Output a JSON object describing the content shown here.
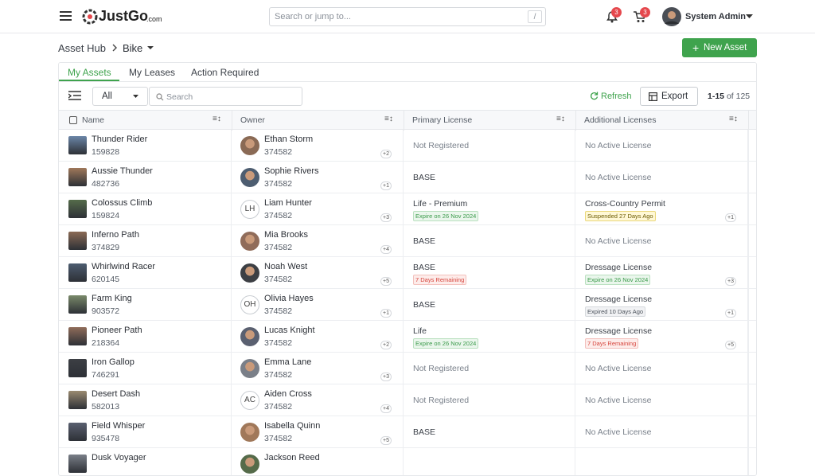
{
  "header": {
    "logo": "JustGo",
    "logo_suffix": ".com",
    "search_placeholder": "Search or jump to...",
    "search_shortcut": "/",
    "notifications_count": 3,
    "cart_count": 3,
    "user_name": "System Admin"
  },
  "breadcrumb": {
    "items": [
      "Asset Hub",
      "Bike"
    ]
  },
  "new_asset_button": "New Asset",
  "tabs": [
    "My Assets",
    "My Leases",
    "Action Required"
  ],
  "toolbar": {
    "filter": "All",
    "search_placeholder": "Search",
    "refresh": "Refresh",
    "export": "Export",
    "pagination": {
      "range": "1-15",
      "of": "of",
      "total": 125
    }
  },
  "table": {
    "columns": [
      "Name",
      "Owner",
      "Primary License",
      "Additional Licenses"
    ],
    "rows": [
      {
        "name": "Thunder Rider",
        "id": "159828",
        "owner": "Ethan Storm",
        "owner_id": "374582",
        "owner_more": "+2",
        "primary": {
          "label": "Not Registered"
        },
        "additional": {
          "label": "No Active License"
        }
      },
      {
        "name": "Aussie Thunder",
        "id": "482736",
        "owner": "Sophie Rivers",
        "owner_id": "374582",
        "owner_more": "+1",
        "primary": {
          "label": "BASE"
        },
        "additional": {
          "label": "No Active License"
        }
      },
      {
        "name": "Colossus Climb",
        "id": "159824",
        "owner": "Liam Hunter",
        "owner_initials": "LH",
        "owner_id": "374582",
        "owner_more": "+3",
        "primary": {
          "label": "Life - Premium",
          "badge": "Expire on 26 Nov 2024",
          "tone": "green"
        },
        "additional": {
          "label": "Cross-Country Permit",
          "badge": "Suspended 27 Days Ago",
          "tone": "yellow",
          "more": "+1"
        }
      },
      {
        "name": "Inferno Path",
        "id": "374829",
        "owner": "Mia Brooks",
        "owner_id": "374582",
        "owner_more": "+4",
        "primary": {
          "label": "BASE"
        },
        "additional": {
          "label": "No Active License"
        }
      },
      {
        "name": "Whirlwind Racer",
        "id": "620145",
        "owner": "Noah West",
        "owner_id": "374582",
        "owner_more": "+5",
        "primary": {
          "label": "BASE",
          "badge": "7 Days Remaining",
          "tone": "red"
        },
        "additional": {
          "label": "Dressage License",
          "badge": "Expire on 26 Nov 2024",
          "tone": "green",
          "more": "+3"
        }
      },
      {
        "name": "Farm King",
        "id": "903572",
        "owner": "Olivia Hayes",
        "owner_initials": "OH",
        "owner_id": "374582",
        "owner_more": "+1",
        "primary": {
          "label": "BASE"
        },
        "additional": {
          "label": "Dressage License",
          "badge": "Expired 10 Days Ago",
          "tone": "gray",
          "more": "+1"
        }
      },
      {
        "name": "Pioneer Path",
        "id": "218364",
        "owner": "Lucas Knight",
        "owner_id": "374582",
        "owner_more": "+2",
        "primary": {
          "label": "Life",
          "badge": "Expire on 26 Nov 2024",
          "tone": "green"
        },
        "additional": {
          "label": "Dressage License",
          "badge": "7 Days Remaining",
          "tone": "red",
          "more": "+5"
        }
      },
      {
        "name": "Iron Gallop",
        "id": "746291",
        "owner": "Emma Lane",
        "owner_id": "374582",
        "owner_more": "+3",
        "primary": {
          "label": "Not Registered"
        },
        "additional": {
          "label": "No Active License"
        }
      },
      {
        "name": "Desert Dash",
        "id": "582013",
        "owner": "Aiden Cross",
        "owner_initials": "AC",
        "owner_id": "374582",
        "owner_more": "+4",
        "primary": {
          "label": "Not Registered"
        },
        "additional": {
          "label": "No Active License"
        }
      },
      {
        "name": "Field Whisper",
        "id": "935478",
        "owner": "Isabella Quinn",
        "owner_id": "374582",
        "owner_more": "+5",
        "primary": {
          "label": "BASE"
        },
        "additional": {
          "label": "No Active License"
        }
      },
      {
        "name": "Dusk Voyager",
        "owner": "Jackson Reed"
      }
    ]
  }
}
